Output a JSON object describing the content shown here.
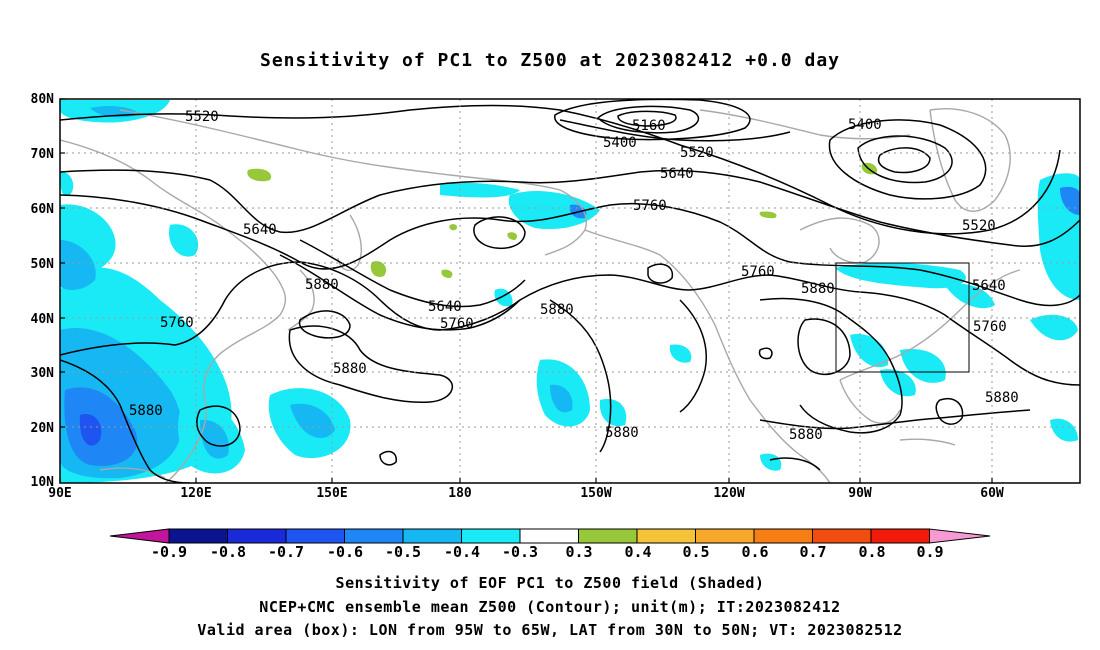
{
  "title": "Sensitivity of PC1 to Z500 at 2023082412 +0.0 day",
  "lat_ticks": [
    "80N",
    "70N",
    "60N",
    "50N",
    "40N",
    "30N",
    "20N",
    "10N"
  ],
  "lon_ticks": [
    "90E",
    "120E",
    "150E",
    "180",
    "150W",
    "120W",
    "90W",
    "60W"
  ],
  "contour_labels": [
    {
      "id": "c1",
      "text": "5520"
    },
    {
      "id": "c2",
      "text": "5160"
    },
    {
      "id": "c3",
      "text": "5400"
    },
    {
      "id": "c4",
      "text": "5520"
    },
    {
      "id": "c5",
      "text": "5400"
    },
    {
      "id": "c6",
      "text": "5640"
    },
    {
      "id": "c7",
      "text": "5760"
    },
    {
      "id": "c8",
      "text": "5640"
    },
    {
      "id": "c9",
      "text": "5520"
    },
    {
      "id": "c10",
      "text": "5880"
    },
    {
      "id": "c11",
      "text": "5640"
    },
    {
      "id": "c12",
      "text": "5760"
    },
    {
      "id": "c13",
      "text": "5760"
    },
    {
      "id": "c14",
      "text": "5880"
    },
    {
      "id": "c15",
      "text": "5760"
    },
    {
      "id": "c16",
      "text": "5880"
    },
    {
      "id": "c17",
      "text": "5640"
    },
    {
      "id": "c18",
      "text": "5760"
    },
    {
      "id": "c19",
      "text": "5880"
    },
    {
      "id": "c20",
      "text": "5880"
    },
    {
      "id": "c21",
      "text": "5880"
    },
    {
      "id": "c22",
      "text": "5880"
    },
    {
      "id": "c23",
      "text": "5880"
    }
  ],
  "colorbar": {
    "labels": [
      "-0.9",
      "-0.8",
      "-0.7",
      "-0.6",
      "-0.5",
      "-0.4",
      "-0.3",
      "0.3",
      "0.4",
      "0.5",
      "0.6",
      "0.7",
      "0.8",
      "0.9"
    ],
    "colors": [
      "#0b1490",
      "#1a2ad8",
      "#1e55f0",
      "#1f86f5",
      "#15b8f2",
      "#19eaf6",
      "#ffffff",
      "#96c83a",
      "#f5c33a",
      "#f7a82b",
      "#f77d15",
      "#f24d10",
      "#f21a0b"
    ],
    "left_cap_color": "#c2159c",
    "right_cap_color": "#f59ad2"
  },
  "footer": {
    "line1": "Sensitivity of EOF PC1 to Z500 field (Shaded)",
    "line2": "NCEP+CMC ensemble mean Z500 (Contour); unit(m); IT:2023082412",
    "line3": "Valid area (box): LON from 95W to 65W, LAT from 30N to 50N; VT: 2023082512"
  }
}
